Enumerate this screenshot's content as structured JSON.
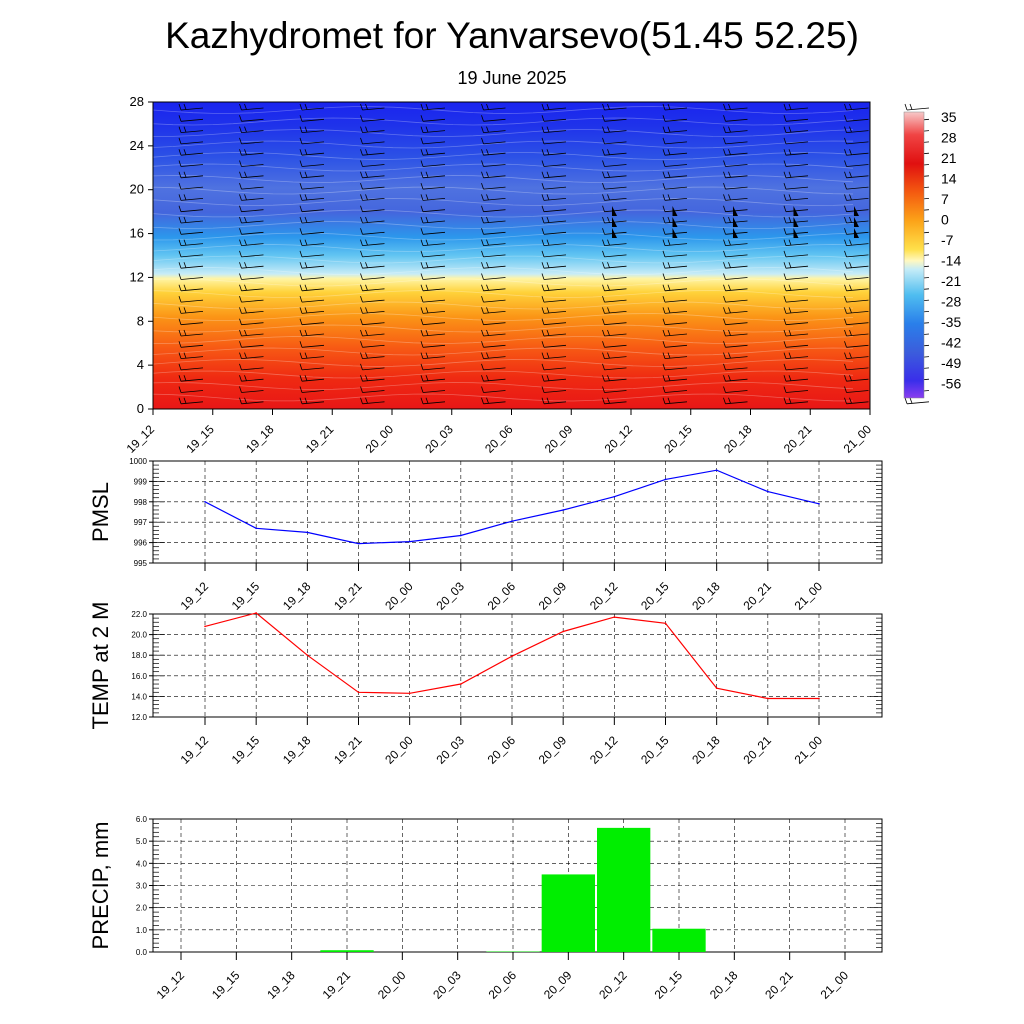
{
  "title": "Kazhydromet for Yanvarsevo(51.45 52.25)",
  "subtitle": "19 June 2025",
  "time_labels": [
    "19_12",
    "19_15",
    "19_18",
    "19_21",
    "20_00",
    "20_03",
    "20_06",
    "20_09",
    "20_12",
    "20_15",
    "20_18",
    "20_21",
    "21_00"
  ],
  "chart_data": [
    {
      "type": "heatmap",
      "name": "temperature-cross-section",
      "x": [
        "19_12",
        "19_15",
        "19_18",
        "19_21",
        "20_00",
        "20_03",
        "20_06",
        "20_09",
        "20_12",
        "20_15",
        "20_18",
        "20_21",
        "21_00"
      ],
      "ylim": [
        0,
        28
      ],
      "yticks": [
        0,
        4,
        8,
        12,
        16,
        20,
        24,
        28
      ],
      "colorbar_labels": [
        "35",
        "28",
        "21",
        "14",
        "7",
        "0",
        "-7",
        "-14",
        "-21",
        "-28",
        "-35",
        "-42",
        "-49",
        "-56"
      ],
      "wind_barbs": true
    },
    {
      "type": "line",
      "ylabel": "PMSL",
      "x": [
        "19_12",
        "19_15",
        "19_18",
        "19_21",
        "20_00",
        "20_03",
        "20_06",
        "20_09",
        "20_12",
        "20_15",
        "20_18",
        "20_21",
        "21_00"
      ],
      "values": [
        998.0,
        996.7,
        996.5,
        995.95,
        996.05,
        996.35,
        997.05,
        997.6,
        998.25,
        999.1,
        999.55,
        998.5,
        997.9
      ],
      "ylim": [
        995,
        1000
      ],
      "yticks": [
        "995",
        "996",
        "997",
        "998",
        "999",
        "1000"
      ],
      "color": "#0000ff",
      "grid": true
    },
    {
      "type": "line",
      "ylabel": "TEMP at 2 M",
      "x": [
        "19_12",
        "19_15",
        "19_18",
        "19_21",
        "20_00",
        "20_03",
        "20_06",
        "20_09",
        "20_12",
        "20_15",
        "20_18",
        "20_21",
        "21_00"
      ],
      "values": [
        20.8,
        22.1,
        18.0,
        14.4,
        14.3,
        15.2,
        17.9,
        20.3,
        21.7,
        21.1,
        14.8,
        13.8,
        13.8
      ],
      "ylim": [
        12,
        22
      ],
      "yticks": [
        "12.0",
        "14.0",
        "16.0",
        "18.0",
        "20.0",
        "22.0"
      ],
      "color": "#ff0000",
      "grid": true
    },
    {
      "type": "bar",
      "ylabel": "PRECIP, mm",
      "x": [
        "19_12",
        "19_15",
        "19_18",
        "19_21",
        "20_00",
        "20_03",
        "20_06",
        "20_09",
        "20_12",
        "20_15",
        "20_18",
        "20_21",
        "21_00"
      ],
      "values": [
        0,
        0,
        0,
        0.08,
        0,
        0,
        0.02,
        3.5,
        5.6,
        1.05,
        0,
        0,
        0
      ],
      "ylim": [
        0,
        6
      ],
      "yticks": [
        "0.0",
        "1.0",
        "2.0",
        "3.0",
        "4.0",
        "5.0",
        "6.0"
      ],
      "color": "#00ee00",
      "grid": true
    }
  ]
}
